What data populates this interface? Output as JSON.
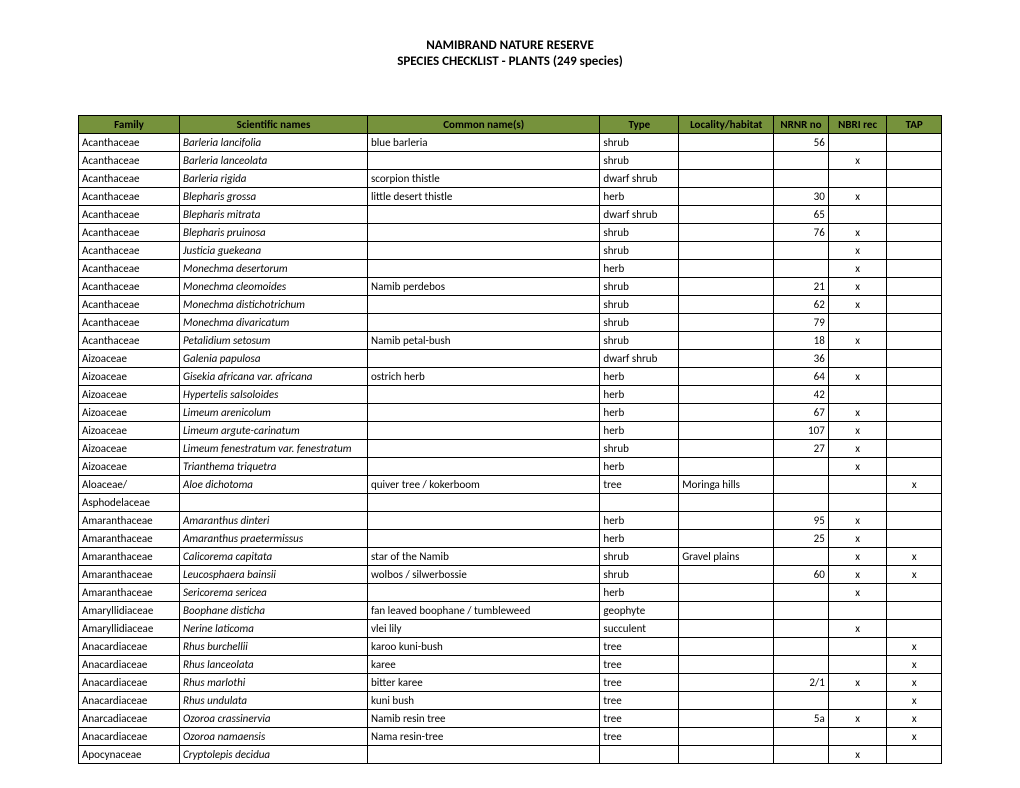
{
  "title_line1": "NAMIBRAND NATURE RESERVE",
  "title_line2": "SPECIES CHECKLIST - PLANTS (249 species)",
  "header_bg": "#76923c",
  "columns": [
    "Family",
    "Scientific names",
    "Common name(s)",
    "Type",
    "Locality/habitat",
    "NRNR no",
    "NBRI rec",
    "TAP"
  ],
  "rows": [
    {
      "family": "Acanthaceae",
      "sci": "Barleria lancifolia",
      "common": "blue barleria",
      "type": "shrub",
      "loc": "",
      "nrnr": "56",
      "nbri": "",
      "tap": ""
    },
    {
      "family": "Acanthaceae",
      "sci": "Barleria lanceolata",
      "common": "",
      "type": "shrub",
      "loc": "",
      "nrnr": "",
      "nbri": "x",
      "tap": ""
    },
    {
      "family": "Acanthaceae",
      "sci": "Barleria rigida",
      "common": "scorpion thistle",
      "type": "dwarf shrub",
      "loc": "",
      "nrnr": "",
      "nbri": "",
      "tap": ""
    },
    {
      "family": "Acanthaceae",
      "sci": "Blepharis grossa",
      "common": "little desert thistle",
      "type": "herb",
      "loc": "",
      "nrnr": "30",
      "nbri": "x",
      "tap": ""
    },
    {
      "family": "Acanthaceae",
      "sci": "Blepharis mitrata",
      "common": "",
      "type": "dwarf shrub",
      "loc": "",
      "nrnr": "65",
      "nbri": "",
      "tap": ""
    },
    {
      "family": "Acanthaceae",
      "sci": "Blepharis pruinosa",
      "common": "",
      "type": "shrub",
      "loc": "",
      "nrnr": "76",
      "nbri": "x",
      "tap": ""
    },
    {
      "family": "Acanthaceae",
      "sci": "Justicia guekeana",
      "common": "",
      "type": "shrub",
      "loc": "",
      "nrnr": "",
      "nbri": "x",
      "tap": ""
    },
    {
      "family": "Acanthaceae",
      "sci": "Monechma desertorum",
      "common": "",
      "type": "herb",
      "loc": "",
      "nrnr": "",
      "nbri": "x",
      "tap": ""
    },
    {
      "family": "Acanthaceae",
      "sci": "Monechma cleomoides",
      "common": "Namib perdebos",
      "type": "shrub",
      "loc": "",
      "nrnr": "21",
      "nbri": "x",
      "tap": ""
    },
    {
      "family": "Acanthaceae",
      "sci": "Monechma distichotrichum",
      "common": "",
      "type": "shrub",
      "loc": "",
      "nrnr": "62",
      "nbri": "x",
      "tap": ""
    },
    {
      "family": "Acanthaceae",
      "sci": "Monechma divaricatum",
      "common": "",
      "type": "shrub",
      "loc": "",
      "nrnr": "79",
      "nbri": "",
      "tap": ""
    },
    {
      "family": "Acanthaceae",
      "sci": "Petalidium setosum",
      "common": "Namib petal-bush",
      "type": "shrub",
      "loc": "",
      "nrnr": "18",
      "nbri": "x",
      "tap": ""
    },
    {
      "family": "Aizoaceae",
      "sci": "Galenia papulosa",
      "common": "",
      "type": "dwarf shrub",
      "loc": "",
      "nrnr": "36",
      "nbri": "",
      "tap": ""
    },
    {
      "family": "Aizoaceae",
      "sci": "Gisekia africana var. africana",
      "common": "ostrich herb",
      "type": "herb",
      "loc": "",
      "nrnr": "64",
      "nbri": "x",
      "tap": ""
    },
    {
      "family": "Aizoaceae",
      "sci": "Hypertelis salsoloides",
      "common": "",
      "type": "herb",
      "loc": "",
      "nrnr": "42",
      "nbri": "",
      "tap": ""
    },
    {
      "family": "Aizoaceae",
      "sci": "Limeum arenicolum",
      "common": "",
      "type": "herb",
      "loc": "",
      "nrnr": "67",
      "nbri": "x",
      "tap": ""
    },
    {
      "family": "Aizoaceae",
      "sci": "Limeum argute-carinatum",
      "common": "",
      "type": "herb",
      "loc": "",
      "nrnr": "107",
      "nbri": "x",
      "tap": ""
    },
    {
      "family": "Aizoaceae",
      "sci": "Limeum fenestratum  var. fenestratum",
      "common": "",
      "type": "shrub",
      "loc": "",
      "nrnr": "27",
      "nbri": "x",
      "tap": ""
    },
    {
      "family": "Aizoaceae",
      "sci": "Trianthema triquetra",
      "common": "",
      "type": "herb",
      "loc": "",
      "nrnr": "",
      "nbri": "x",
      "tap": ""
    },
    {
      "family": "Aloaceae/ Asphodelaceae",
      "sci": "Aloe dichotoma",
      "common": "quiver tree / kokerboom",
      "type": "tree",
      "loc": "Moringa hills",
      "nrnr": "",
      "nbri": "",
      "tap": "x",
      "split": true
    },
    {
      "family": "Amaranthaceae",
      "sci": "Amaranthus dinteri",
      "common": "",
      "type": "herb",
      "loc": "",
      "nrnr": "95",
      "nbri": "x",
      "tap": ""
    },
    {
      "family": "Amaranthaceae",
      "sci": "Amaranthus praetermissus",
      "common": "",
      "type": "herb",
      "loc": "",
      "nrnr": "25",
      "nbri": "x",
      "tap": ""
    },
    {
      "family": "Amaranthaceae",
      "sci": "Calicorema capitata",
      "common": "star of the Namib",
      "type": "shrub",
      "loc": "Gravel plains",
      "nrnr": "",
      "nbri": "x",
      "tap": "x"
    },
    {
      "family": "Amaranthaceae",
      "sci": "Leucosphaera bainsii",
      "common": "wolbos / silwerbossie",
      "type": "shrub",
      "loc": "",
      "nrnr": "60",
      "nbri": "x",
      "tap": "x"
    },
    {
      "family": "Amaranthaceae",
      "sci": "Sericorema sericea",
      "common": "",
      "type": "herb",
      "loc": "",
      "nrnr": "",
      "nbri": "x",
      "tap": ""
    },
    {
      "family": "Amaryllidiaceae",
      "sci": "Boophane disticha",
      "common": "fan leaved boophane / tumbleweed",
      "type": "geophyte",
      "loc": "",
      "nrnr": "",
      "nbri": "",
      "tap": ""
    },
    {
      "family": "Amaryllidiaceae",
      "sci": "Nerine laticoma",
      "common": "vlei lily",
      "type": "succulent",
      "loc": "",
      "nrnr": "",
      "nbri": "x",
      "tap": ""
    },
    {
      "family": "Anacardiaceae",
      "sci": "Rhus burchellii",
      "common": "karoo kuni-bush",
      "type": "tree",
      "loc": "",
      "nrnr": "",
      "nbri": "",
      "tap": "x"
    },
    {
      "family": "Anacardiaceae",
      "sci": "Rhus lanceolata",
      "common": "karee",
      "type": "tree",
      "loc": "",
      "nrnr": "",
      "nbri": "",
      "tap": "x"
    },
    {
      "family": "Anacardiaceae",
      "sci": "Rhus marlothi",
      "common": "bitter karee",
      "type": "tree",
      "loc": "",
      "nrnr": "2/1",
      "nbri": "x",
      "tap": "x"
    },
    {
      "family": "Anacardiaceae",
      "sci": "Rhus undulata",
      "common": "kuni bush",
      "type": "tree",
      "loc": "",
      "nrnr": "",
      "nbri": "",
      "tap": "x"
    },
    {
      "family": "Anarcadiaceae",
      "sci": "Ozoroa crassinervia",
      "common": "Namib resin tree",
      "type": "tree",
      "loc": "",
      "nrnr": "5a",
      "nbri": "x",
      "tap": "x"
    },
    {
      "family": "Anacardiaceae",
      "sci": "Ozoroa namaensis",
      "common": "Nama resin-tree",
      "type": "tree",
      "loc": "",
      "nrnr": "",
      "nbri": "",
      "tap": "x"
    },
    {
      "family": "Apocynaceae",
      "sci": "Cryptolepis decidua",
      "common": "",
      "type": "",
      "loc": "",
      "nrnr": "",
      "nbri": "x",
      "tap": ""
    }
  ]
}
